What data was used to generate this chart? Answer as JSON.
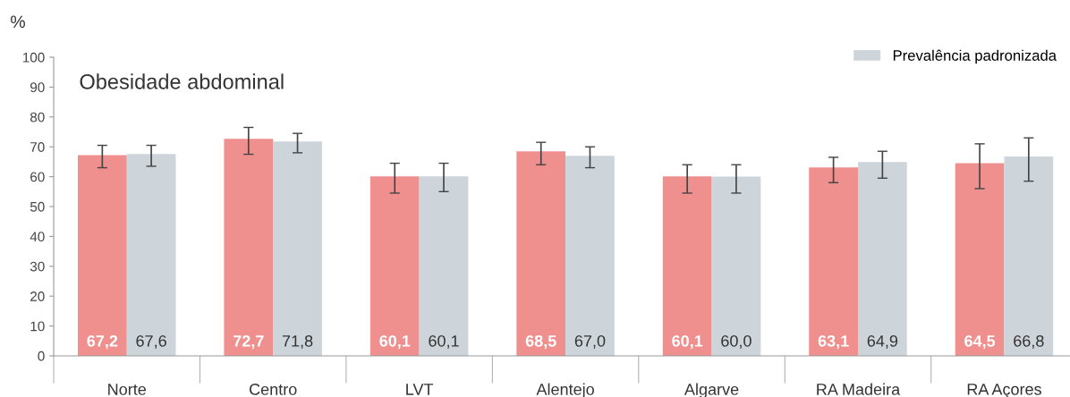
{
  "chart_data": {
    "type": "bar",
    "title": "Obesidade abdominal",
    "ylabel": "%",
    "categories": [
      "Norte",
      "Centro",
      "LVT",
      "Alentejo",
      "Algarve",
      "RA Madeira",
      "RA Açores"
    ],
    "series": [
      {
        "color": "#ef8f8e",
        "values": [
          67.2,
          72.7,
          60.1,
          68.5,
          60.1,
          63.1,
          64.5
        ],
        "value_labels": [
          "67,2",
          "72,7",
          "60,1",
          "68,5",
          "60,1",
          "63,1",
          "64,5"
        ],
        "errors": [
          [
            63.0,
            70.5
          ],
          [
            67.5,
            76.5
          ],
          [
            54.5,
            64.5
          ],
          [
            64.0,
            71.5
          ],
          [
            54.5,
            64.0
          ],
          [
            58.0,
            66.5
          ],
          [
            56.0,
            71.0
          ]
        ]
      },
      {
        "name": "Prevalência padronizada",
        "color": "#cdd5db",
        "values": [
          67.6,
          71.8,
          60.1,
          67.0,
          60.0,
          64.9,
          66.8
        ],
        "value_labels": [
          "67,6",
          "71,8",
          "60,1",
          "67,0",
          "60,0",
          "64,9",
          "66,8"
        ],
        "errors": [
          [
            63.5,
            70.5
          ],
          [
            68.0,
            74.5
          ],
          [
            55.0,
            64.5
          ],
          [
            63.0,
            70.0
          ],
          [
            54.5,
            64.0
          ],
          [
            59.5,
            68.5
          ],
          [
            58.5,
            73.0
          ]
        ]
      }
    ],
    "ylim": [
      0,
      100
    ],
    "yticks": [
      0,
      10,
      20,
      30,
      40,
      50,
      60,
      70,
      80,
      90,
      100
    ],
    "grid": false,
    "legend": "top right"
  }
}
